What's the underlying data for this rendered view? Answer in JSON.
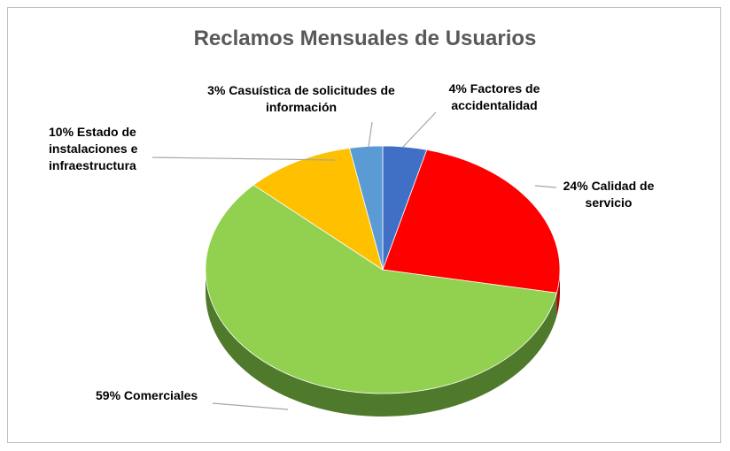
{
  "chart_data": {
    "type": "pie",
    "title": "Reclamos Mensuales de Usuarios",
    "categories": [
      "Factores de accidentalidad",
      "Calidad de servicio",
      "Comerciales",
      "Estado de instalaciones e infraestructura",
      "Casuística de solicitudes de información"
    ],
    "values": [
      4,
      24,
      59,
      10,
      3
    ],
    "value_labels": [
      "4%",
      "24%",
      "59%",
      "10%",
      "3%"
    ],
    "colors": [
      "#3f70c6",
      "#ff0000",
      "#92d050",
      "#ffc000",
      "#5b9bd5"
    ],
    "side_colors": [
      "#2c4f8c",
      "#b30000",
      "#4f7a2b",
      "#b38600",
      "#3f6f99"
    ]
  }
}
